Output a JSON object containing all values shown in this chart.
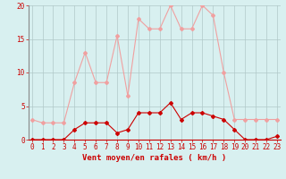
{
  "hours": [
    0,
    1,
    2,
    3,
    4,
    5,
    6,
    7,
    8,
    9,
    10,
    11,
    12,
    13,
    14,
    15,
    16,
    17,
    18,
    19,
    20,
    21,
    22,
    23
  ],
  "rafales": [
    3.0,
    2.5,
    2.5,
    2.5,
    8.5,
    13.0,
    8.5,
    8.5,
    15.5,
    6.5,
    18.0,
    16.5,
    16.5,
    20.0,
    16.5,
    16.5,
    20.0,
    18.5,
    10.0,
    3.0,
    3.0,
    3.0,
    3.0,
    3.0
  ],
  "moyen": [
    0.0,
    0.0,
    0.0,
    0.0,
    1.5,
    2.5,
    2.5,
    2.5,
    1.0,
    1.5,
    4.0,
    4.0,
    4.0,
    5.5,
    3.0,
    4.0,
    4.0,
    3.5,
    3.0,
    1.5,
    0.0,
    0.0,
    0.0,
    0.5
  ],
  "rafales_color": "#f0a0a0",
  "moyen_color": "#cc0000",
  "background_color": "#d8f0f0",
  "grid_color": "#b0c8c8",
  "xlabel": "Vent moyen/en rafales ( km/h )",
  "ylim": [
    0,
    20
  ],
  "yticks": [
    0,
    5,
    10,
    15,
    20
  ],
  "xticks": [
    0,
    1,
    2,
    3,
    4,
    5,
    6,
    7,
    8,
    9,
    10,
    11,
    12,
    13,
    14,
    15,
    16,
    17,
    18,
    19,
    20,
    21,
    22,
    23
  ],
  "tick_fontsize": 5.5,
  "xlabel_fontsize": 6.5,
  "linewidth": 0.8,
  "markersize": 2.0
}
